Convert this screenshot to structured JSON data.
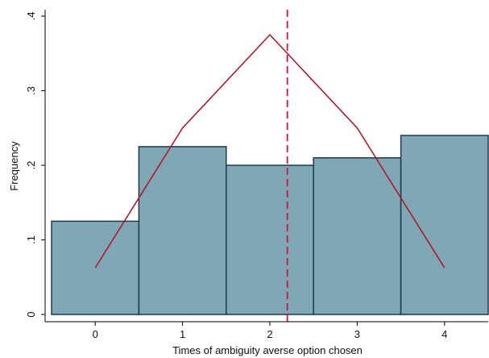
{
  "chart_data": {
    "type": "bar",
    "categories": [
      "0",
      "1",
      "2",
      "3",
      "4"
    ],
    "x": [
      0,
      1,
      2,
      3,
      4
    ],
    "values": [
      0.125,
      0.225,
      0.2,
      0.21,
      0.24
    ],
    "series": [
      {
        "type": "bar",
        "values": [
          0.125,
          0.225,
          0.2,
          0.21,
          0.24
        ]
      },
      {
        "type": "line",
        "values": [
          0.0625,
          0.25,
          0.375,
          0.25,
          0.0625
        ]
      }
    ],
    "vline": {
      "x": 2.2,
      "style": "dashed"
    },
    "xlabel": "Times of ambiguity averse option chosen",
    "ylabel": "Frequency",
    "xlim": [
      -0.5,
      4.5
    ],
    "ylim": [
      0,
      0.4
    ],
    "yticks": [
      0,
      0.1,
      0.2,
      0.3,
      0.4
    ],
    "ytick_labels": [
      "0",
      ".1",
      ".2",
      ".3",
      ".4"
    ],
    "xticks": [
      0,
      1,
      2,
      3,
      4
    ],
    "xtick_labels": [
      "0",
      "1",
      "2",
      "3",
      "4"
    ],
    "grid": false,
    "colors": {
      "bar_fill": "#7fa7b5",
      "bar_edge": "#1e3a4c",
      "line": "#b2172b",
      "vline": "#c8163f",
      "axis": "#000000"
    }
  }
}
